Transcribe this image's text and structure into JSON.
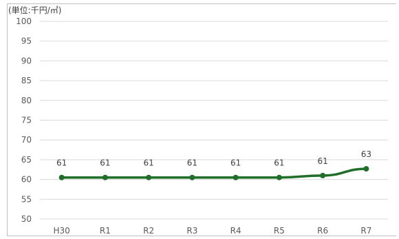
{
  "chart_data": {
    "type": "line",
    "unit_label": "(単位:千円/㎡)",
    "categories": [
      "H30",
      "R1",
      "R2",
      "R3",
      "R4",
      "R5",
      "R6",
      "R7"
    ],
    "series": [
      {
        "values": [
          60.5,
          60.5,
          60.5,
          60.5,
          60.5,
          60.5,
          61,
          62.7
        ],
        "data_labels": [
          "61",
          "61",
          "61",
          "61",
          "61",
          "61",
          "61",
          "63"
        ],
        "color": "#1f6e2a"
      }
    ],
    "ylim": [
      50,
      100
    ],
    "yticks": [
      "100",
      "95",
      "90",
      "85",
      "80",
      "75",
      "70",
      "65",
      "60",
      "55",
      "50"
    ],
    "grid": true,
    "legend": "none"
  }
}
